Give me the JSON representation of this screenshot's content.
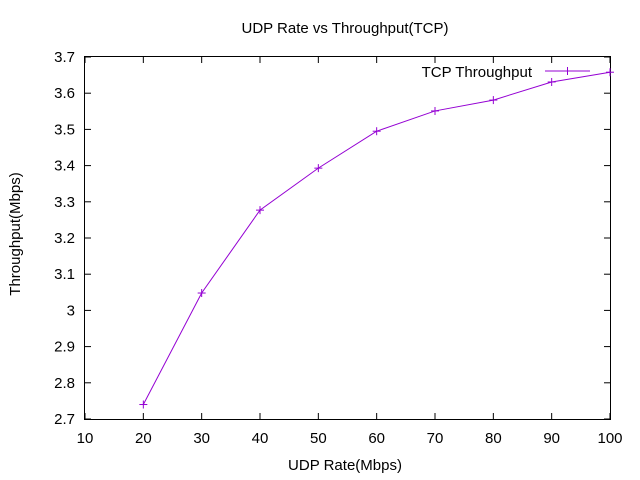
{
  "chart_data": {
    "type": "line",
    "title": "UDP Rate vs Throughput(TCP)",
    "xlabel": "UDP Rate(Mbps)",
    "ylabel": "Throughput(Mbps)",
    "xlim": [
      10,
      100
    ],
    "ylim": [
      2.7,
      3.7
    ],
    "x_ticks": [
      "10",
      "20",
      "30",
      "40",
      "50",
      "60",
      "70",
      "80",
      "90",
      "100"
    ],
    "y_ticks": [
      "2.7",
      "2.8",
      "2.9",
      "3",
      "3.1",
      "3.2",
      "3.3",
      "3.4",
      "3.5",
      "3.6",
      "3.7"
    ],
    "grid": false,
    "legend_position": "top-right",
    "series": [
      {
        "name": "TCP Throughput",
        "color": "#9400d3",
        "marker": "plus",
        "x": [
          20,
          30,
          40,
          50,
          60,
          70,
          80,
          90,
          100
        ],
        "y": [
          2.74,
          3.048,
          3.277,
          3.393,
          3.495,
          3.551,
          3.581,
          3.631,
          3.658
        ]
      }
    ]
  }
}
